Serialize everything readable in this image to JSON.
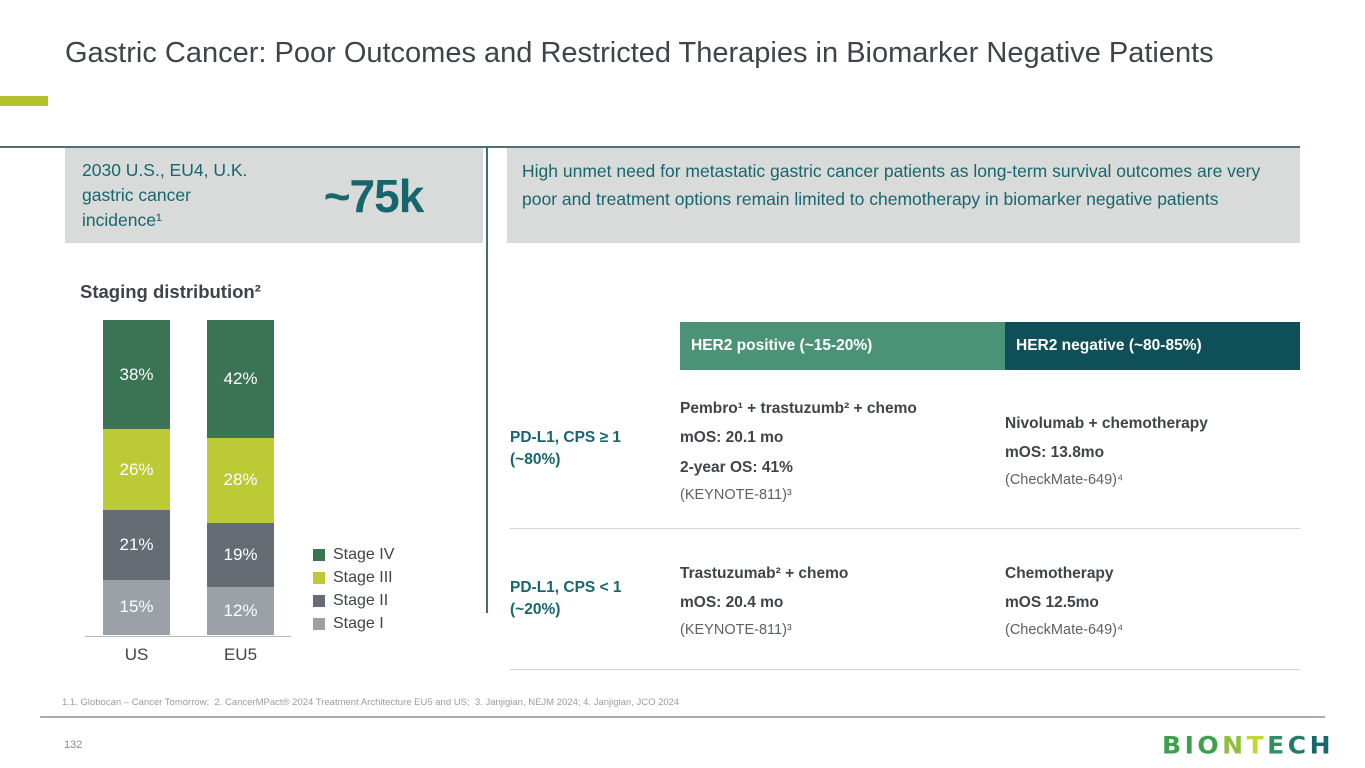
{
  "slide": {
    "title": "Gastric Cancer: Poor Outcomes and Restricted Therapies in Biomarker Negative Patients",
    "footnote": "1.1. Globocan – Cancer Tomorrow;  2. CancerMPact® 2024 Treatment Architecture EU5 and US;  3. Janjigian, NEJM 2024; 4. Janjigian, JCO 2024",
    "page_number": "132"
  },
  "incidence_box": {
    "label": "2030 U.S., EU4, U.K.\ngastric cancer\nincidence¹",
    "value": "~75k"
  },
  "summary_box": {
    "text": "High unmet need for metastatic gastric cancer patients as long-term survival outcomes are very poor and treatment options remain limited to chemotherapy in biomarker negative patients"
  },
  "chart_data": {
    "type": "bar",
    "stacked": true,
    "title": "Staging distribution²",
    "categories": [
      "US",
      "EU5"
    ],
    "series": [
      {
        "name": "Stage IV",
        "color": "#3b7355",
        "values": [
          38,
          42
        ]
      },
      {
        "name": "Stage III",
        "color": "#bcca36",
        "values": [
          26,
          28
        ]
      },
      {
        "name": "Stage II",
        "color": "#656c73",
        "values": [
          21,
          19
        ]
      },
      {
        "name": "Stage I",
        "color": "#9ba1a6",
        "values": [
          15,
          12
        ]
      }
    ],
    "value_suffix": "%",
    "xlabel": "",
    "ylabel": "",
    "ylim": [
      0,
      100
    ],
    "grid": false,
    "legend_position": "right"
  },
  "table": {
    "col_headers": [
      {
        "label": "HER2 positive (~15-20%)",
        "bg": "#4b9377"
      },
      {
        "label": "HER2 negative (~80-85%)",
        "bg": "#0e4f58"
      }
    ],
    "rows": [
      {
        "label": "PD-L1, CPS ≥ 1\n(~80%)",
        "cells": [
          {
            "lines": [
              "Pembro¹ + trastuzumb² + chemo",
              "mOS: 20.1 mo",
              "2-year OS: 41%"
            ],
            "note": "(KEYNOTE-811)³"
          },
          {
            "lines": [
              "Nivolumab + chemotherapy",
              "mOS: 13.8mo"
            ],
            "note": "(CheckMate-649)⁴"
          }
        ]
      },
      {
        "label": "PD-L1, CPS < 1\n(~20%)",
        "cells": [
          {
            "lines": [
              "Trastuzumab² + chemo",
              "mOS: 20.4 mo"
            ],
            "note": "(KEYNOTE-811)³"
          },
          {
            "lines": [
              "Chemotherapy",
              "mOS 12.5mo"
            ],
            "note": "(CheckMate-649)⁴"
          }
        ]
      }
    ]
  },
  "logo": {
    "text": "BIONTECH",
    "letter_colors": [
      "#3da14c",
      "#3da14c",
      "#3da14c",
      "#8fbe3c",
      "#c3d82f",
      "#2f9163",
      "#217c68",
      "#15696d"
    ]
  }
}
